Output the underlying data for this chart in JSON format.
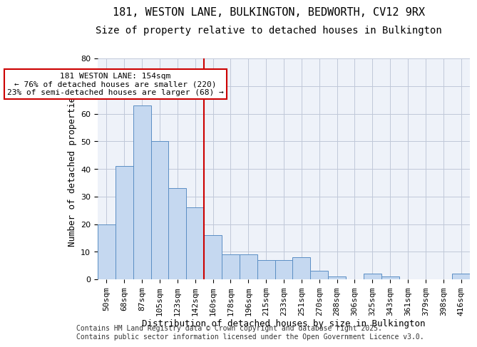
{
  "title_line1": "181, WESTON LANE, BULKINGTON, BEDWORTH, CV12 9RX",
  "title_line2": "Size of property relative to detached houses in Bulkington",
  "xlabel": "Distribution of detached houses by size in Bulkington",
  "ylabel": "Number of detached properties",
  "bar_labels": [
    "50sqm",
    "68sqm",
    "87sqm",
    "105sqm",
    "123sqm",
    "142sqm",
    "160sqm",
    "178sqm",
    "196sqm",
    "215sqm",
    "233sqm",
    "251sqm",
    "270sqm",
    "288sqm",
    "306sqm",
    "325sqm",
    "343sqm",
    "361sqm",
    "379sqm",
    "398sqm",
    "416sqm"
  ],
  "bar_values": [
    20,
    41,
    63,
    50,
    33,
    26,
    16,
    9,
    9,
    7,
    7,
    8,
    3,
    1,
    0,
    2,
    1,
    0,
    0,
    0,
    2
  ],
  "bar_color": "#c5d8f0",
  "bar_edge_color": "#5b8ec4",
  "grid_color": "#c0c8d8",
  "background_color": "#eef2f9",
  "vline_x": 6,
  "vline_color": "#cc0000",
  "annotation_text": "181 WESTON LANE: 154sqm\n← 76% of detached houses are smaller (220)\n23% of semi-detached houses are larger (68) →",
  "annotation_box_color": "#ffffff",
  "annotation_box_edge": "#cc0000",
  "ylim": [
    0,
    80
  ],
  "yticks": [
    0,
    10,
    20,
    30,
    40,
    50,
    60,
    70,
    80
  ],
  "footer_text": "Contains HM Land Registry data © Crown copyright and database right 2025.\nContains public sector information licensed under the Open Government Licence v3.0.",
  "title_fontsize": 11,
  "subtitle_fontsize": 10,
  "axis_label_fontsize": 9,
  "tick_fontsize": 8,
  "annotation_fontsize": 8,
  "footer_fontsize": 7
}
